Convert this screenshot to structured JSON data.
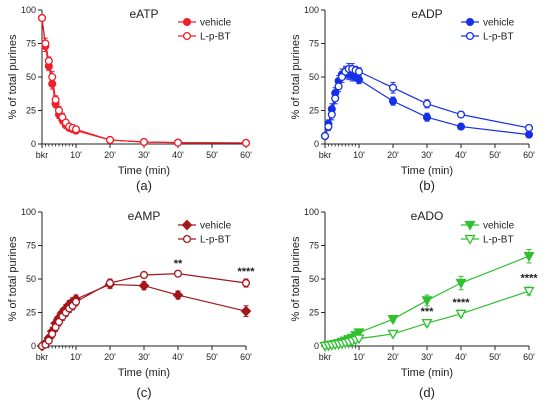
{
  "chart_data": [
    {
      "type": "line",
      "title": "eATP",
      "caption": "(a)",
      "xlabel": "Time (min)",
      "ylabel": "% of total purines",
      "x": [
        0,
        1,
        2,
        3,
        4,
        5,
        6,
        7,
        8,
        9,
        10,
        20,
        30,
        40,
        60
      ],
      "xticks": [
        0,
        10,
        20,
        30,
        40,
        50,
        60
      ],
      "xtick_labels": [
        "bkr",
        "10'",
        "20'",
        "30'",
        "40'",
        "50'",
        "60'"
      ],
      "ylim": [
        0,
        100
      ],
      "yticks": [
        0,
        25,
        50,
        75,
        100
      ],
      "xlim": [
        0,
        60
      ],
      "color": "#f0202a",
      "legend_position": "top-right",
      "series": [
        {
          "name": "vehicle",
          "marker": "filled-circle",
          "values": [
            94,
            73,
            58,
            45,
            30,
            22,
            18,
            14,
            12,
            11,
            10,
            3,
            1.5,
            1,
            0.8
          ],
          "errors": [
            2,
            4,
            3,
            4,
            3,
            3,
            3,
            2,
            2,
            2,
            2,
            1,
            0.6,
            0.5,
            0.4
          ]
        },
        {
          "name": "L-p-BT",
          "marker": "open-circle",
          "values": [
            94,
            75,
            62,
            50,
            33,
            25,
            20,
            16,
            13,
            12,
            11,
            3,
            1.5,
            1,
            0.8
          ],
          "errors": [
            2,
            4,
            3,
            4,
            3,
            3,
            3,
            2,
            2,
            2,
            2,
            1,
            0.6,
            0.5,
            0.4
          ]
        }
      ],
      "annotations": []
    },
    {
      "type": "line",
      "title": "eADP",
      "caption": "(b)",
      "xlabel": "Time (min)",
      "ylabel": "% of total purines",
      "x": [
        0,
        1,
        2,
        3,
        4,
        5,
        6,
        7,
        8,
        9,
        10,
        20,
        30,
        40,
        60
      ],
      "xticks": [
        0,
        10,
        20,
        30,
        40,
        50,
        60
      ],
      "xtick_labels": [
        "bkr",
        "10'",
        "20'",
        "30'",
        "40'",
        "50'",
        "60'"
      ],
      "ylim": [
        0,
        100
      ],
      "yticks": [
        0,
        25,
        50,
        75,
        100
      ],
      "xlim": [
        0,
        60
      ],
      "color": "#1730e6",
      "legend_position": "top-right",
      "series": [
        {
          "name": "vehicle",
          "marker": "filled-circle",
          "values": [
            6,
            15,
            26,
            38,
            47,
            52,
            53,
            52,
            51,
            50,
            48,
            32,
            20,
            13,
            7
          ],
          "errors": [
            1,
            3,
            4,
            4,
            4,
            4,
            4,
            4,
            4,
            3,
            3,
            3,
            3,
            2,
            1
          ]
        },
        {
          "name": "L-p-BT",
          "marker": "open-circle",
          "values": [
            6,
            13,
            22,
            34,
            43,
            50,
            54,
            56,
            56,
            55,
            54,
            42,
            30,
            22,
            12
          ],
          "errors": [
            1,
            3,
            4,
            4,
            4,
            4,
            4,
            4,
            4,
            3,
            3,
            4,
            3,
            2,
            1
          ]
        }
      ],
      "annotations": []
    },
    {
      "type": "line",
      "title": "eAMP",
      "caption": "(c)",
      "xlabel": "Time (min)",
      "ylabel": "% of total purines",
      "x": [
        0,
        1,
        2,
        3,
        4,
        5,
        6,
        7,
        8,
        9,
        10,
        20,
        30,
        40,
        60
      ],
      "xticks": [
        0,
        10,
        20,
        30,
        40,
        50,
        60
      ],
      "xtick_labels": [
        "bkr",
        "10'",
        "20'",
        "30'",
        "40'",
        "50'",
        "60'"
      ],
      "ylim": [
        0,
        100
      ],
      "yticks": [
        0,
        25,
        50,
        75,
        100
      ],
      "xlim": [
        0,
        60
      ],
      "color": "#a3161b",
      "legend_position": "top-right",
      "series": [
        {
          "name": "vehicle",
          "marker": "filled-diamond",
          "values": [
            0,
            2,
            6,
            11,
            17,
            21,
            25,
            28,
            31,
            33,
            35,
            46,
            45,
            38,
            26
          ],
          "errors": [
            0.5,
            1,
            2,
            3,
            3,
            3,
            3,
            3,
            3,
            3,
            3,
            3,
            3,
            3,
            4
          ]
        },
        {
          "name": "L-p-BT",
          "marker": "open-circle",
          "values": [
            0,
            1,
            4,
            9,
            14,
            18,
            22,
            25,
            28,
            30,
            33,
            47,
            53,
            54,
            47
          ],
          "errors": [
            0.5,
            1,
            2,
            3,
            3,
            3,
            3,
            3,
            3,
            3,
            3,
            3,
            2,
            2,
            3
          ]
        }
      ],
      "annotations": [
        {
          "x": 40,
          "y": 59,
          "text": "**"
        },
        {
          "x": 60,
          "y": 53,
          "text": "****"
        }
      ]
    },
    {
      "type": "line",
      "title": "eADO",
      "caption": "(d)",
      "xlabel": "Time (min)",
      "ylabel": "% of total purines",
      "x": [
        0,
        1,
        2,
        3,
        4,
        5,
        6,
        7,
        8,
        9,
        10,
        20,
        30,
        40,
        60
      ],
      "xticks": [
        0,
        10,
        20,
        30,
        40,
        50,
        60
      ],
      "xtick_labels": [
        "bkr",
        "10'",
        "20'",
        "30'",
        "40'",
        "50'",
        "60'"
      ],
      "ylim": [
        0,
        100
      ],
      "yticks": [
        0,
        25,
        50,
        75,
        100
      ],
      "xlim": [
        0,
        60
      ],
      "color": "#2fc02f",
      "legend_position": "top-right",
      "series": [
        {
          "name": "vehicle",
          "marker": "filled-triangle-down",
          "values": [
            0,
            0.5,
            1,
            1.5,
            2,
            3,
            4,
            5,
            6,
            8,
            10,
            20,
            34,
            47,
            67
          ],
          "errors": [
            0.5,
            0.5,
            0.5,
            0.5,
            1,
            1,
            1,
            1,
            1,
            1,
            2,
            2,
            4,
            5,
            5
          ]
        },
        {
          "name": "L-p-BT",
          "marker": "open-triangle-down",
          "values": [
            0,
            0.3,
            0.6,
            1,
            1.3,
            1.7,
            2.2,
            2.8,
            3.5,
            4.5,
            5.5,
            9,
            17,
            24,
            41
          ],
          "errors": [
            0.5,
            0.5,
            0.5,
            0.5,
            0.5,
            0.5,
            0.5,
            1,
            1,
            1,
            1,
            1,
            2,
            2,
            3
          ]
        }
      ],
      "annotations": [
        {
          "x": 30,
          "y": 23,
          "text": "***"
        },
        {
          "x": 40,
          "y": 30,
          "text": "****"
        },
        {
          "x": 60,
          "y": 48,
          "text": "****"
        }
      ]
    }
  ]
}
